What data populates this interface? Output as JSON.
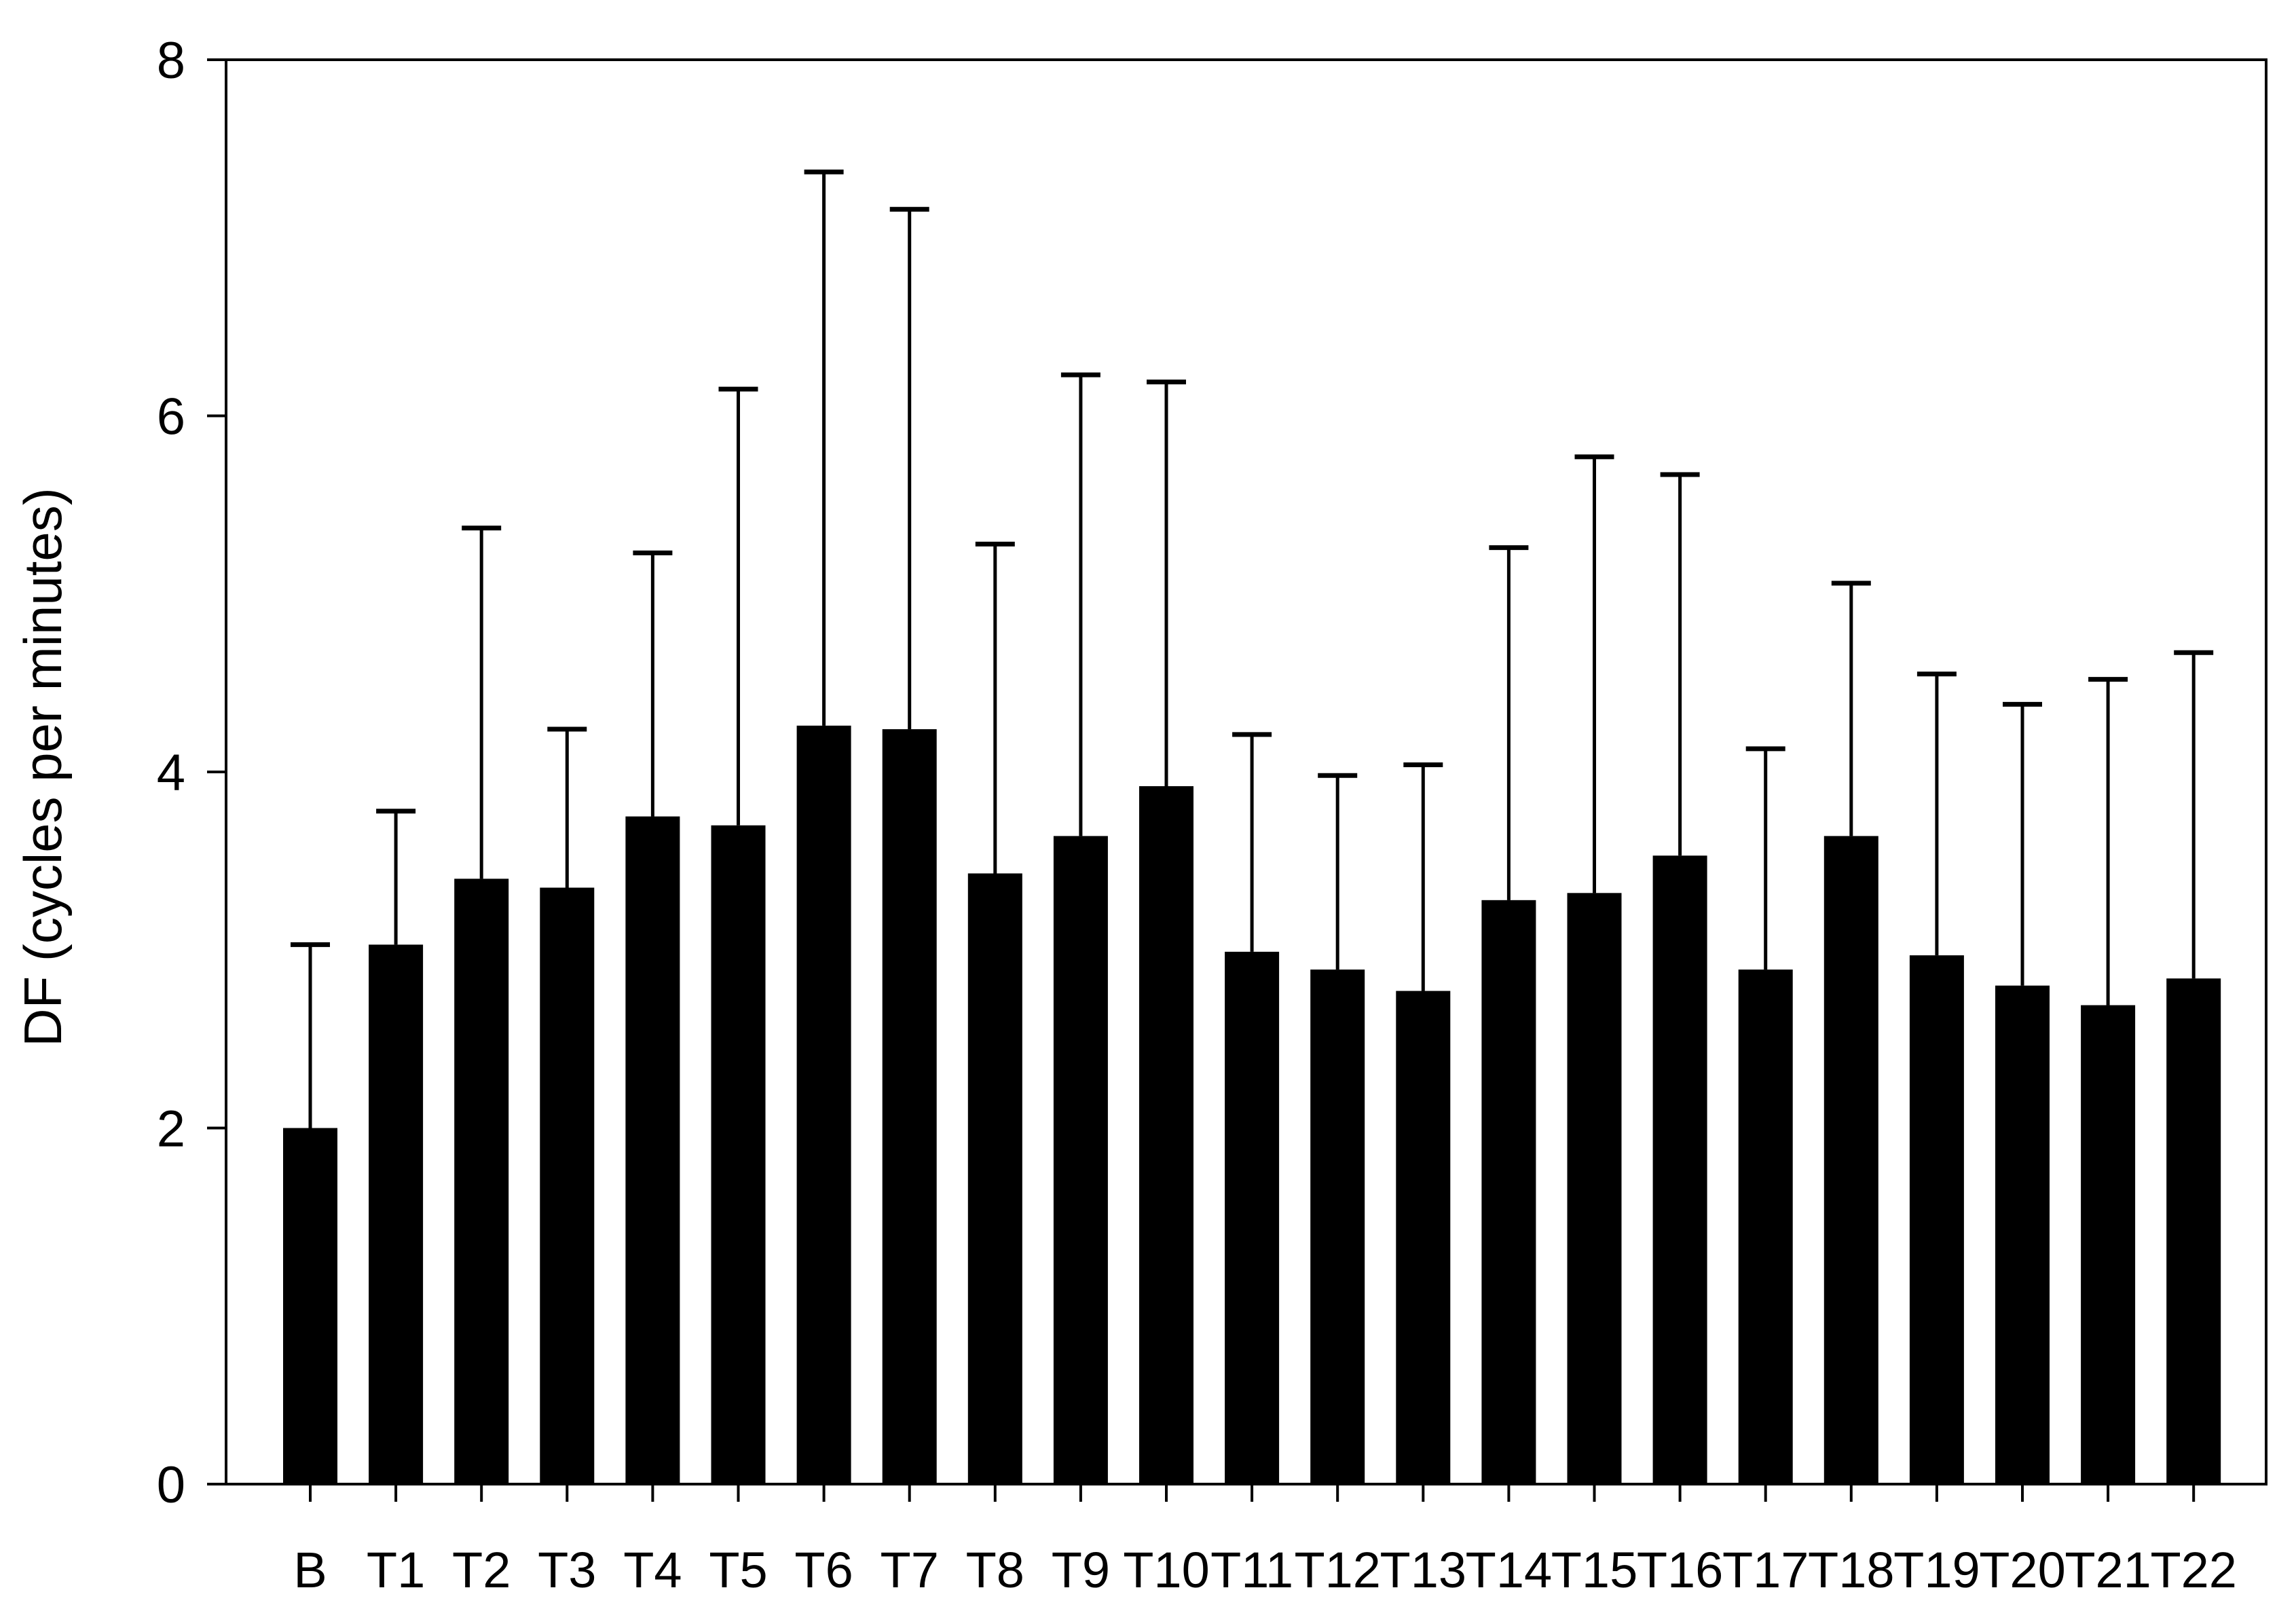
{
  "chart_data": {
    "type": "bar",
    "title": "",
    "xlabel": "",
    "ylabel": "DF (cycles per minutes)",
    "ylim": [
      0,
      8
    ],
    "yticks": [
      0,
      2,
      4,
      6,
      8
    ],
    "grid": false,
    "legend": "none",
    "categories": [
      "B",
      "T1",
      "T2",
      "T3",
      "T4",
      "T5",
      "T6",
      "T7",
      "T8",
      "T9",
      "T10",
      "T11",
      "T12",
      "T13",
      "T14",
      "T15",
      "T16",
      "T17",
      "T18",
      "T19",
      "T20",
      "T21",
      "T22"
    ],
    "series": [
      {
        "values": [
          2.0,
          3.03,
          3.4,
          3.35,
          3.75,
          3.7,
          4.26,
          4.24,
          3.43,
          3.64,
          3.92,
          2.99,
          2.89,
          2.77,
          3.28,
          3.32,
          3.53,
          2.89,
          3.64,
          2.97,
          2.8,
          2.69,
          2.84
        ],
        "error_upper": [
          3.03,
          3.78,
          5.37,
          4.24,
          5.23,
          6.15,
          7.37,
          7.16,
          5.28,
          6.23,
          6.19,
          4.21,
          3.98,
          4.04,
          5.26,
          5.77,
          5.67,
          4.13,
          5.06,
          4.55,
          4.38,
          4.52,
          4.67
        ]
      }
    ],
    "colors": {
      "bar": "#000000",
      "axis": "#000000",
      "background": "#ffffff"
    }
  }
}
